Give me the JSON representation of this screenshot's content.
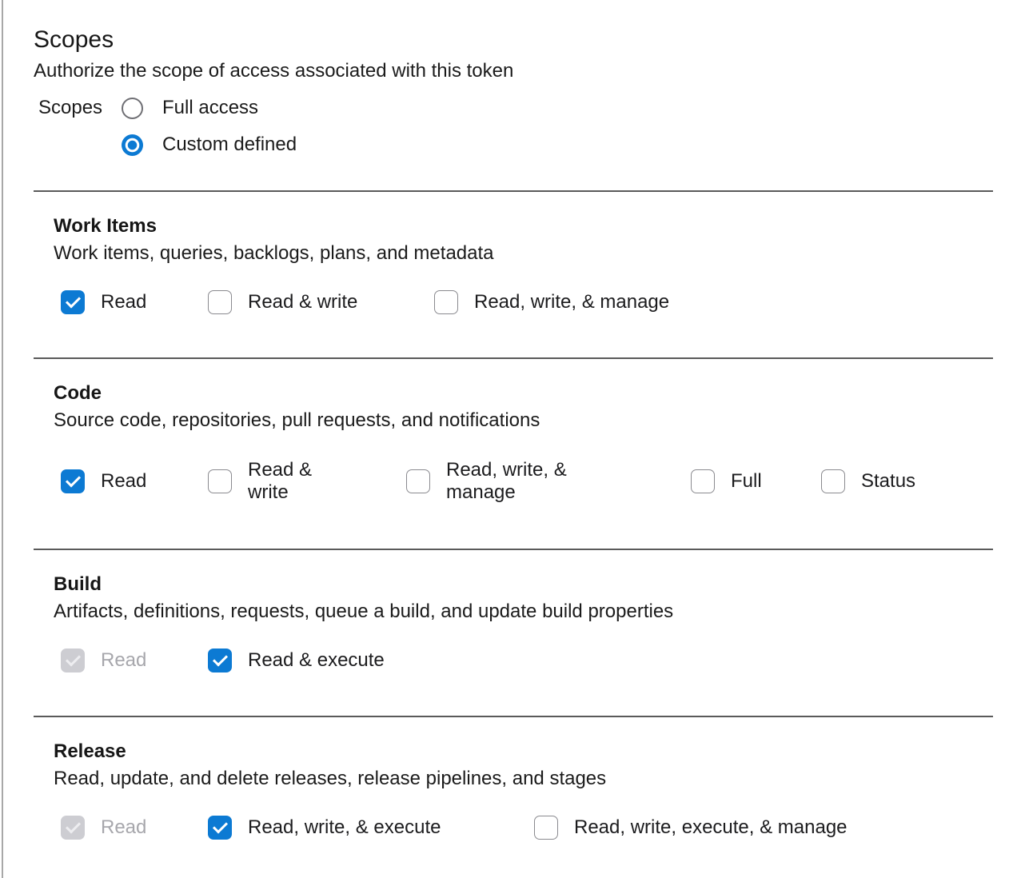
{
  "header": {
    "title": "Scopes",
    "subtitle": "Authorize the scope of access associated with this token"
  },
  "scopes_radio": {
    "label": "Scopes",
    "options": [
      {
        "label": "Full access",
        "selected": false
      },
      {
        "label": "Custom defined",
        "selected": true
      }
    ]
  },
  "sections": [
    {
      "name": "Work Items",
      "description": "Work items, queries, backlogs, plans, and metadata",
      "options": [
        {
          "label": "Read",
          "state": "checked"
        },
        {
          "label": "Read & write",
          "state": "unchecked"
        },
        {
          "label": "Read, write, & manage",
          "state": "unchecked"
        }
      ]
    },
    {
      "name": "Code",
      "description": "Source code, repositories, pull requests, and notifications",
      "options": [
        {
          "label": "Read",
          "state": "checked"
        },
        {
          "label": "Read &\nwrite",
          "state": "unchecked"
        },
        {
          "label": "Read, write, &\nmanage",
          "state": "unchecked"
        },
        {
          "label": "Full",
          "state": "unchecked"
        },
        {
          "label": "Status",
          "state": "unchecked"
        }
      ]
    },
    {
      "name": "Build",
      "description": "Artifacts, definitions, requests, queue a build, and update build properties",
      "options": [
        {
          "label": "Read",
          "state": "checked-disabled"
        },
        {
          "label": "Read & execute",
          "state": "checked"
        }
      ]
    },
    {
      "name": "Release",
      "description": "Read, update, and delete releases, release pipelines, and stages",
      "options": [
        {
          "label": "Read",
          "state": "checked-disabled"
        },
        {
          "label": "Read, write, & execute",
          "state": "checked"
        },
        {
          "label": "Read, write, execute, & manage",
          "state": "unchecked"
        }
      ]
    }
  ],
  "colors": {
    "accent_blue": "#0c7ad3",
    "divider": "#5a5a5a",
    "disabled_fill": "#cdcdd2",
    "disabled_text": "#a7a7ac",
    "checkbox_border": "#8a8a8f"
  }
}
